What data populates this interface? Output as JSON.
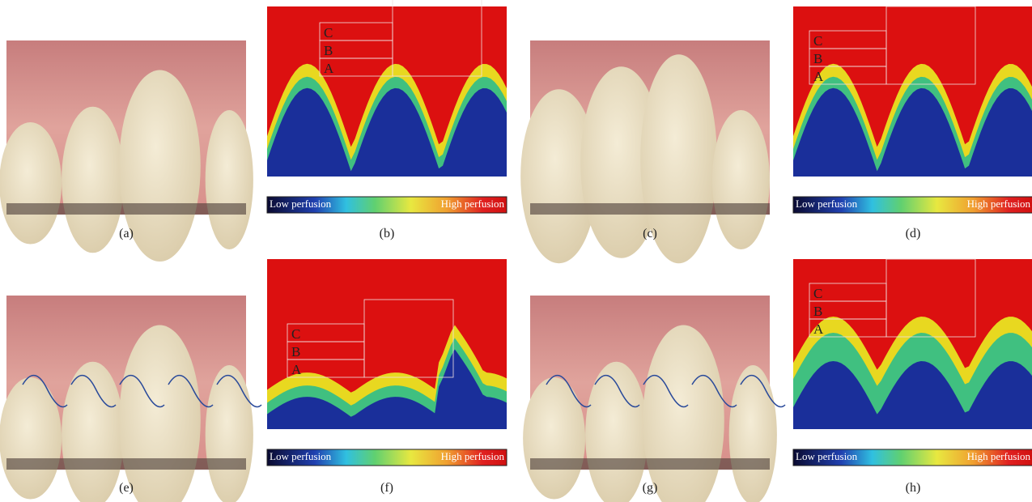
{
  "panels": [
    {
      "caption": "(a)",
      "kind": "photo"
    },
    {
      "caption": "(b)",
      "kind": "perfusion",
      "zones": [
        "C",
        "B",
        "A"
      ],
      "low": "Low perfusion",
      "high": "High perfusion"
    },
    {
      "caption": "(c)",
      "kind": "photo"
    },
    {
      "caption": "(d)",
      "kind": "perfusion",
      "zones": [
        "C",
        "B",
        "A"
      ],
      "low": "Low perfusion",
      "high": "High perfusion"
    },
    {
      "caption": "(e)",
      "kind": "photo"
    },
    {
      "caption": "(f)",
      "kind": "perfusion",
      "zones": [
        "C",
        "B",
        "A"
      ],
      "low": "Low perfusion",
      "high": "High perfusion"
    },
    {
      "caption": "(g)",
      "kind": "photo"
    },
    {
      "caption": "(h)",
      "kind": "perfusion",
      "zones": [
        "C",
        "B",
        "A"
      ],
      "low": "Low perfusion",
      "high": "High perfusion"
    }
  ]
}
